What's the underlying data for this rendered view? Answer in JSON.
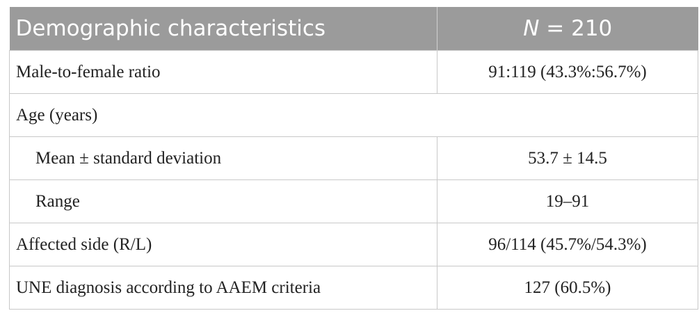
{
  "table": {
    "header": {
      "label": "Demographic characteristics",
      "value_italic": "N",
      "value_rest": "= 210"
    },
    "rows": [
      [
        "Male-to-female ratio",
        "91:119 (43.3%:56.7%)"
      ],
      [
        "Age (years)",
        null
      ],
      [
        "Mean ± standard deviation",
        "53.7 ± 14.5"
      ],
      [
        "Range",
        "19–91"
      ],
      [
        "Affected side (R/L)",
        "96/114 (45.7%/54.3%)"
      ],
      [
        "UNE diagnosis according to AAEM criteria",
        "127 (60.5%)"
      ]
    ]
  }
}
